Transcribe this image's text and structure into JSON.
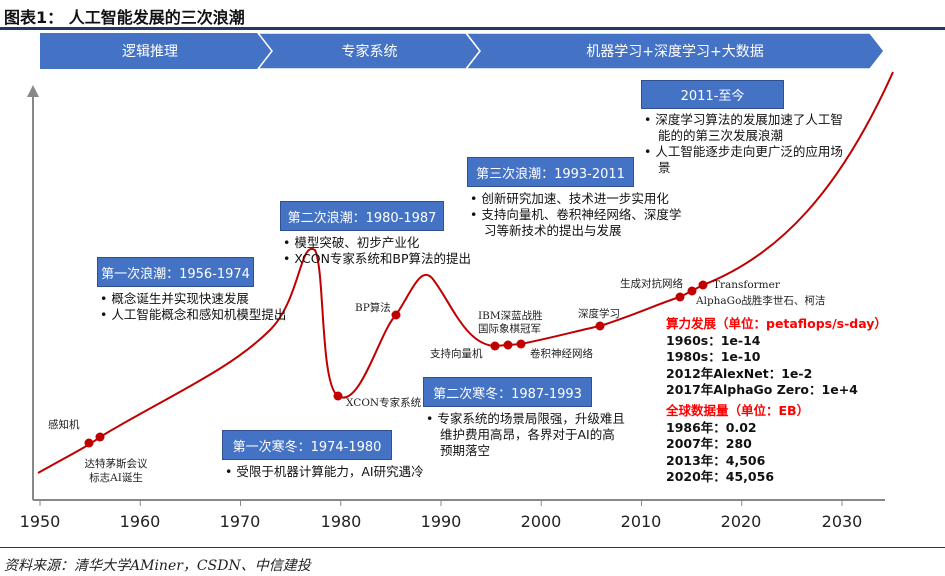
{
  "title": "图表1：  人工智能发展的三次浪潮",
  "phases": [
    "逻辑推理",
    "专家系统",
    "机器学习+深度学习+大数据"
  ],
  "waves": [
    {
      "label": "第一次浪潮：1956-1974",
      "bullets": [
        "概念诞生并实现快速发展",
        "人工智能概念和感知机模型提出"
      ]
    },
    {
      "label": "第二次浪潮：1980-1987",
      "bullets": [
        "模型突破、初步产业化",
        "XCON专家系统和BP算法的提出"
      ]
    },
    {
      "label": "第三次浪潮：1993-2011",
      "bullets": [
        "创新研究加速、技术进一步实用化",
        "支持向量机、卷积神经网络、深度学习等新技术的提出与发展"
      ]
    },
    {
      "label": "2011-至今",
      "bullets": [
        "深度学习算法的发展加速了人工智能的的第三次发展浪潮",
        "人工智能逐步走向更广泛的应用场景"
      ]
    }
  ],
  "winters": [
    {
      "label": "第一次寒冬：1974-1980",
      "bullets": [
        "受限于机器计算能力，AI研究遇冷"
      ]
    },
    {
      "label": "第二次寒冬：1987-1993",
      "bullets": [
        "专家系统的场景局限强，升级难且维护费用高昂，各界对于AI的高预期落空"
      ]
    }
  ],
  "milestones": {
    "perceptron": "感知机",
    "dartmouth": "达特茅斯会议标志AI诞生",
    "xcon": "XCON专家系统",
    "bp": "BP算法",
    "svm": "支持向量机",
    "ibm": "IBM深蓝战胜国际象棋冠军",
    "cnn": "卷积神经网络",
    "dl": "深度学习",
    "gan": "生成对抗网络",
    "transformer": "Transformer",
    "alphago": "AlphaGo战胜李世石、柯洁"
  },
  "compute": {
    "heading": "算力发展（单位：petaflops/s-day）",
    "rows": [
      "1960s：1e-14",
      "1980s：1e-10",
      "2012年AlexNet：1e-2",
      "2017年AlphaGo Zero：1e+4"
    ]
  },
  "data": {
    "heading": "全球数据量（单位：EB）",
    "rows": [
      "1986年：0.02",
      "2007年：280",
      "2013年：4,506",
      "2020年：45,056"
    ]
  },
  "axis": {
    "ticks": [
      "1950",
      "1960",
      "1970",
      "1980",
      "1990",
      "2000",
      "2010",
      "2020",
      "2030"
    ]
  },
  "source": "资料来源：清华大学AMiner，CSDN、中信建投",
  "colors": {
    "box": "#4472C4",
    "curve": "#C00000",
    "highlight": "#FF0000",
    "rule": "#1F3864"
  }
}
